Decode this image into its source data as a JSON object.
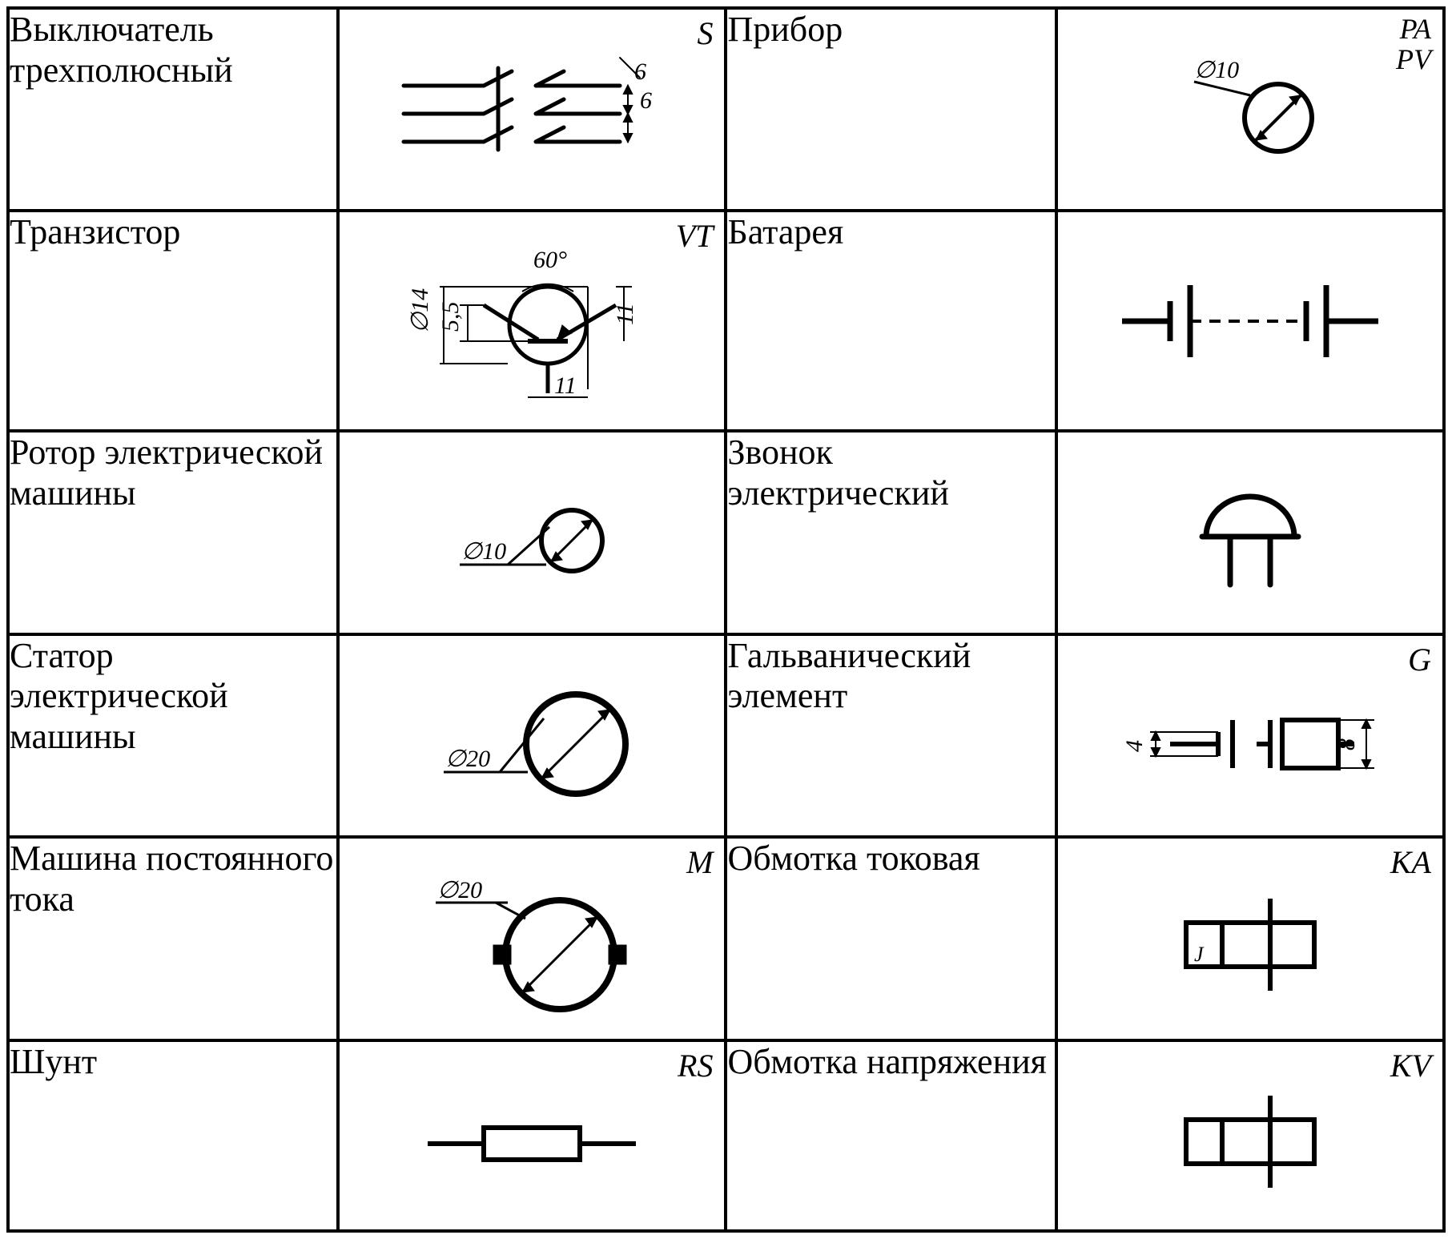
{
  "table": {
    "stroke_color": "#000000",
    "background_color": "#ffffff",
    "border_width": 4,
    "label_fontsize": 44,
    "code_fontsize": 40,
    "dim_fontsize": 30,
    "font_family": "Times New Roman",
    "rows": [
      {
        "left": {
          "label": "Выключатель трехполюсный",
          "code": "S",
          "symbol": {
            "type": "three-pole-switch",
            "dims": [
              "6",
              "6"
            ],
            "stroke_width": 5
          }
        },
        "right": {
          "label": "Прибор",
          "code": "PA\nPV",
          "symbol": {
            "type": "instrument-circle",
            "dim_label": "∅10",
            "stroke_width": 6
          }
        }
      },
      {
        "left": {
          "label": "Транзистор",
          "code": "VT",
          "symbol": {
            "type": "transistor",
            "dims": {
              "angle": "60°",
              "d": "∅14",
              "h1": "5,5",
              "h2": "11",
              "w": "11"
            },
            "stroke_width": 5
          }
        },
        "right": {
          "label": "Батарея",
          "code": "",
          "symbol": {
            "type": "battery",
            "stroke_width": 7
          }
        }
      },
      {
        "left": {
          "label": "Ротор электрической машины",
          "code": "",
          "symbol": {
            "type": "rotor-circle",
            "dim_label": "∅10",
            "stroke_width": 6
          }
        },
        "right": {
          "label": "Звонок электрический",
          "code": "",
          "symbol": {
            "type": "bell",
            "stroke_width": 7
          }
        }
      },
      {
        "left": {
          "label": "Статор электрической машины",
          "code": "",
          "symbol": {
            "type": "stator-circle",
            "dim_label": "∅20",
            "stroke_width": 8
          }
        },
        "right": {
          "label": "Гальванический элемент",
          "code": "G",
          "symbol": {
            "type": "galvanic-cell",
            "dims": {
              "left": "4",
              "right": "8"
            },
            "stroke_width": 6
          }
        }
      },
      {
        "left": {
          "label": "Машина постоянного тока",
          "code": "M",
          "symbol": {
            "type": "dc-machine",
            "dim_label": "∅20",
            "stroke_width": 8
          }
        },
        "right": {
          "label": "Обмотка токовая",
          "code": "KA",
          "symbol": {
            "type": "current-coil",
            "inner_label": "J",
            "stroke_width": 6
          }
        }
      },
      {
        "left": {
          "label": "Шунт",
          "code": "RS",
          "symbol": {
            "type": "shunt",
            "stroke_width": 6
          }
        },
        "right": {
          "label": "Обмотка напряжения",
          "code": "KV",
          "symbol": {
            "type": "voltage-coil",
            "stroke_width": 6
          }
        }
      }
    ]
  }
}
